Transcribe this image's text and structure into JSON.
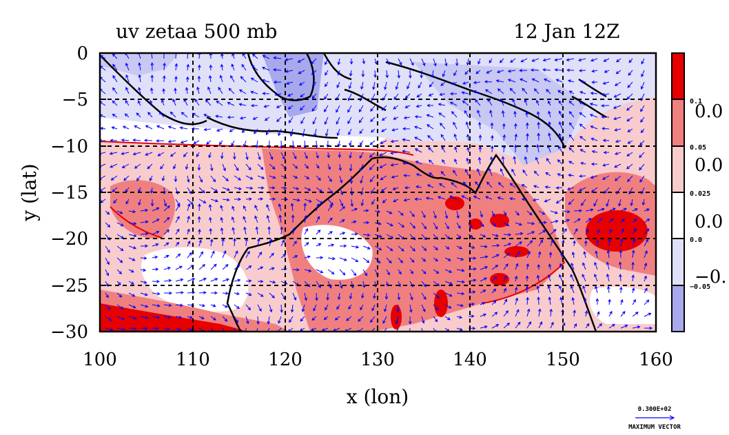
{
  "title_left": "uv zetaa 500 mb",
  "title_right": "12 Jan 12Z",
  "chart_data": {
    "type": "heatmap",
    "overlay": "vector field (u,v wind) with coastlines",
    "xlabel": "x (lon)",
    "ylabel": "y (lat)",
    "xlim": [
      100,
      160
    ],
    "ylim": [
      -30,
      0
    ],
    "x_ticks": [
      "100",
      "110",
      "120",
      "130",
      "140",
      "150",
      "160"
    ],
    "y_ticks": [
      "0",
      "−5",
      "−10",
      "−15",
      "−20",
      "−25",
      "−30"
    ],
    "grid": true,
    "colorbar": {
      "placement": "right",
      "levels": [
        {
          "label": "0.1",
          "big": "0.0",
          "color": "#e60000"
        },
        {
          "label": "0.05",
          "big": "0.0",
          "color": "#f08080"
        },
        {
          "label": "0.025",
          "big": "0.0",
          "color": "#f8cccc"
        },
        {
          "label": "0.0",
          "big": "−0.",
          "color": "#ffffff"
        },
        {
          "label": "−0.05",
          "big": "",
          "color": "#e0e0f8"
        },
        {
          "label": "",
          "big": "",
          "color": "#a8a8ec"
        }
      ]
    },
    "vector_key": {
      "value": "0.300E+02",
      "label": "MAXIMUM VECTOR"
    }
  },
  "colors": {
    "strong_pos": "#e60000",
    "pos": "#f08080",
    "weak_pos": "#f8cccc",
    "neutral": "#ffffff",
    "weak_neg": "#e0e0f8",
    "neg": "#a8a8ec",
    "vector": "#0000ff",
    "coast": "#000000"
  }
}
